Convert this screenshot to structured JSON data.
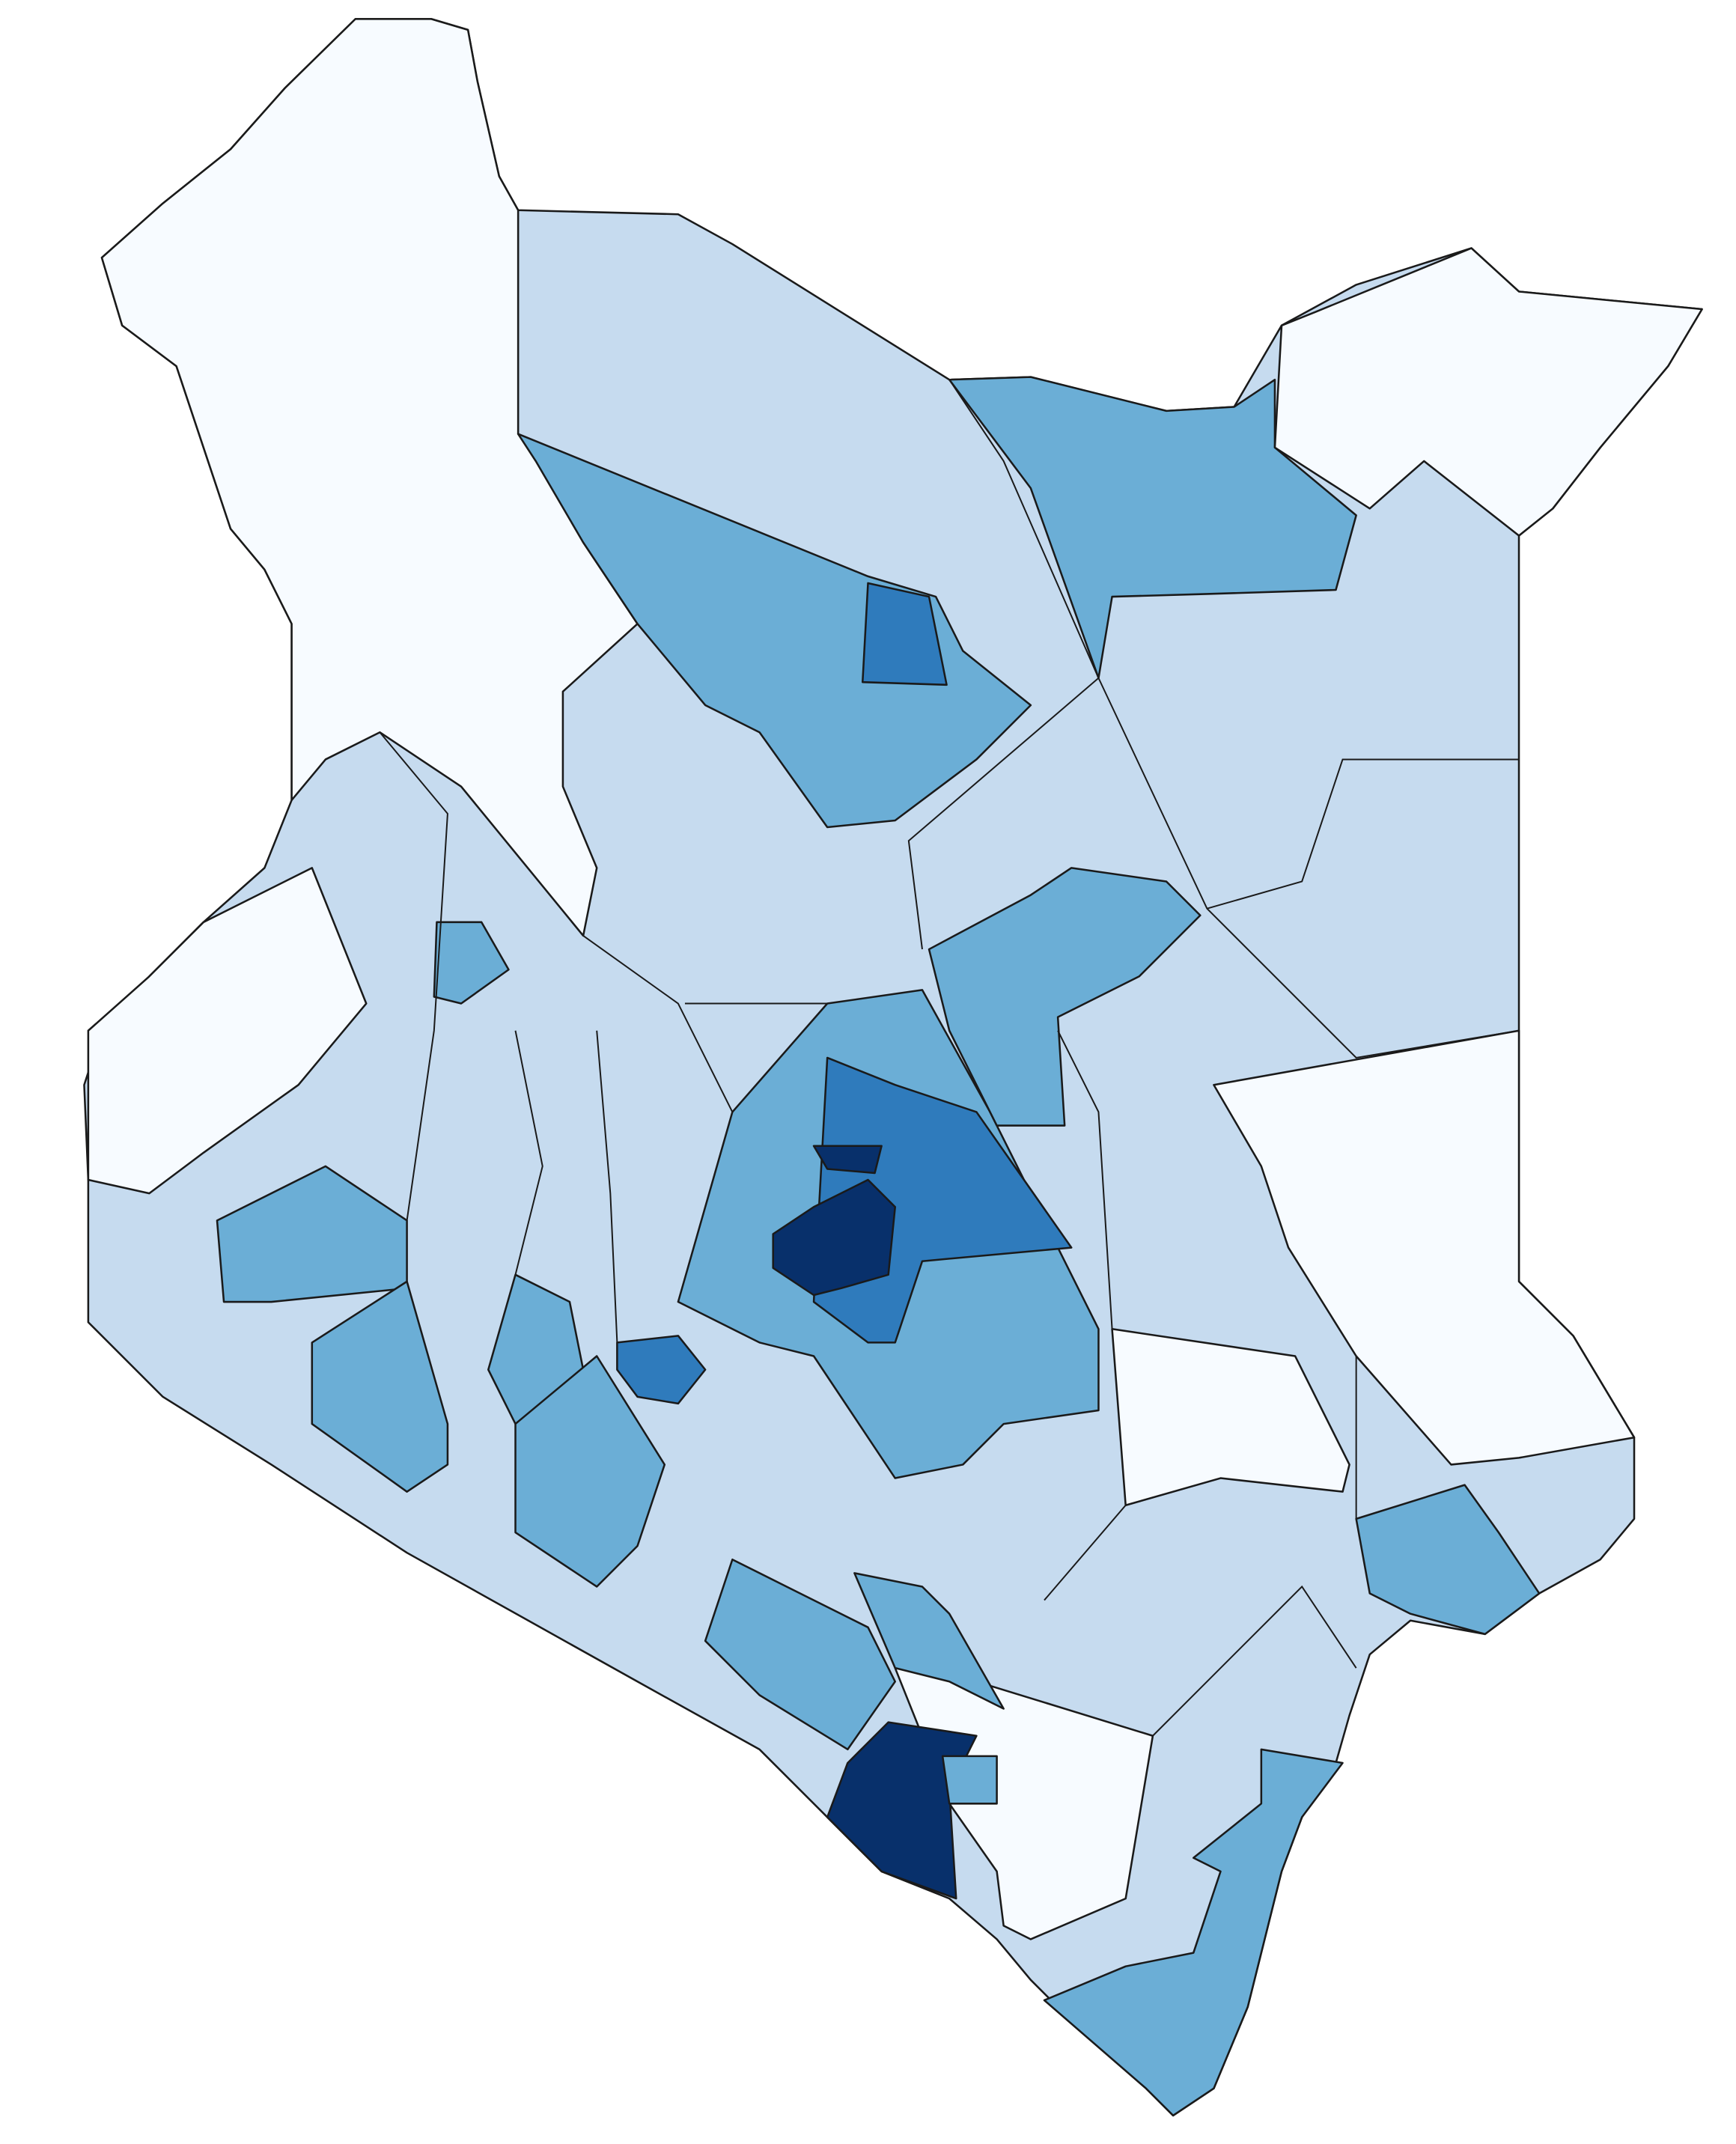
{
  "map": {
    "colors": [
      "#f7fbff",
      "#c6dbef",
      "#6baed6",
      "#2f7bbc",
      "#08306b"
    ]
  }
}
